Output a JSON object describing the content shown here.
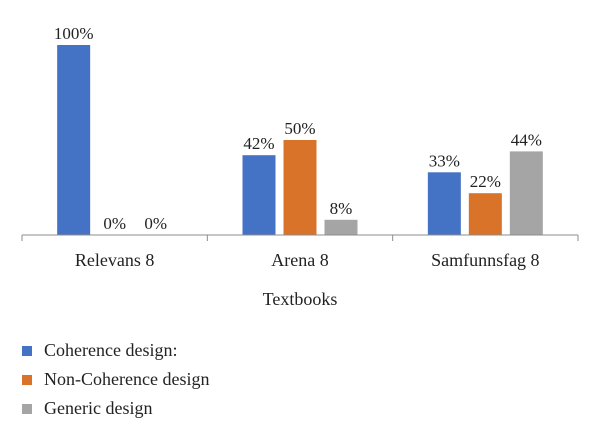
{
  "chart_data": {
    "type": "bar",
    "title": "",
    "xlabel": "Textbooks",
    "ylabel": "",
    "categories": [
      "Relevans 8",
      "Arena 8",
      "Samfunnsfag 8"
    ],
    "series": [
      {
        "name": "Coherence design:",
        "color": "#4472c4",
        "values": [
          100,
          42,
          33
        ],
        "labels": [
          "100%",
          "42%",
          "33%"
        ]
      },
      {
        "name": "Non-Coherence design",
        "color": "#d9732a",
        "values": [
          0,
          50,
          22
        ],
        "labels": [
          "0%",
          "50%",
          "22%"
        ]
      },
      {
        "name": "Generic design",
        "color": "#a5a5a5",
        "values": [
          0,
          8,
          44
        ],
        "labels": [
          "0%",
          "8%",
          "44%"
        ]
      }
    ],
    "ylim": [
      0,
      100
    ],
    "grid": false,
    "legend_position": "bottom-left"
  }
}
